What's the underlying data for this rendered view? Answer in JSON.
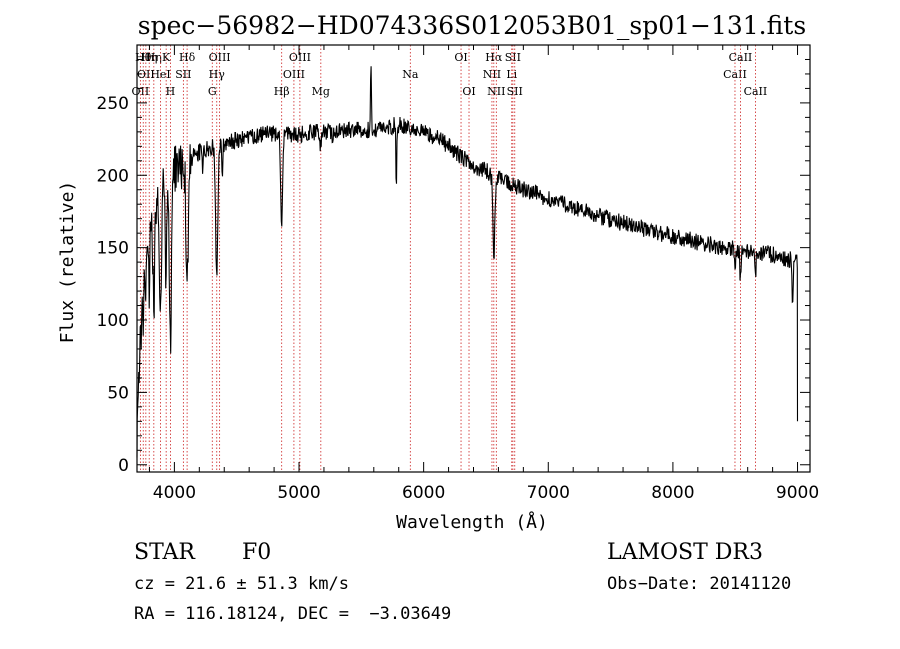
{
  "chart_data": {
    "type": "line",
    "title": "spec−56982−HD074336S012053B01_sp01−131.fits",
    "xlabel": "Wavelength (Å)",
    "ylabel": "Flux (relative)",
    "xlim": [
      3700,
      9100
    ],
    "ylim": [
      -5,
      290
    ],
    "xticks": [
      4000,
      5000,
      6000,
      7000,
      8000,
      9000
    ],
    "xtick_labels": [
      "4000",
      "5000",
      "6000",
      "7000",
      "8000",
      "9000"
    ],
    "yticks": [
      0,
      50,
      100,
      150,
      200,
      250
    ],
    "ytick_labels": [
      "0",
      "50",
      "100",
      "150",
      "200",
      "250"
    ],
    "continuum": [
      [
        3700,
        150
      ],
      [
        3750,
        160
      ],
      [
        3800,
        175
      ],
      [
        3850,
        185
      ],
      [
        3900,
        192
      ],
      [
        3950,
        198
      ],
      [
        4000,
        203
      ],
      [
        4100,
        211
      ],
      [
        4200,
        216
      ],
      [
        4300,
        219
      ],
      [
        4400,
        222
      ],
      [
        4500,
        224
      ],
      [
        4600,
        226
      ],
      [
        4700,
        228
      ],
      [
        4800,
        229
      ],
      [
        4900,
        229
      ],
      [
        5000,
        228
      ],
      [
        5100,
        229
      ],
      [
        5200,
        230
      ],
      [
        5300,
        231
      ],
      [
        5400,
        231
      ],
      [
        5500,
        231
      ],
      [
        5600,
        232
      ],
      [
        5700,
        233
      ],
      [
        5800,
        235
      ],
      [
        5900,
        234
      ],
      [
        6000,
        230
      ],
      [
        6100,
        226
      ],
      [
        6200,
        220
      ],
      [
        6300,
        213
      ],
      [
        6400,
        207
      ],
      [
        6500,
        203
      ],
      [
        6600,
        198
      ],
      [
        6700,
        194
      ],
      [
        6800,
        190
      ],
      [
        7000,
        184
      ],
      [
        7200,
        178
      ],
      [
        7400,
        172
      ],
      [
        7600,
        167
      ],
      [
        7800,
        162
      ],
      [
        8000,
        158
      ],
      [
        8200,
        154
      ],
      [
        8400,
        150
      ],
      [
        8600,
        148
      ],
      [
        8800,
        145
      ],
      [
        9000,
        140
      ]
    ],
    "absorption": [
      [
        3705,
        120,
        5
      ],
      [
        3720,
        90,
        6
      ],
      [
        3735,
        60,
        6
      ],
      [
        3750,
        50,
        6
      ],
      [
        3770,
        45,
        6
      ],
      [
        3798,
        60,
        6
      ],
      [
        3835,
        75,
        7
      ],
      [
        3889,
        90,
        8
      ],
      [
        3933,
        70,
        6
      ],
      [
        3968,
        120,
        8
      ],
      [
        4102,
        80,
        9
      ],
      [
        4227,
        20,
        4
      ],
      [
        4340,
        90,
        9
      ],
      [
        4384,
        20,
        4
      ],
      [
        4861,
        65,
        8
      ],
      [
        5175,
        10,
        6
      ],
      [
        5270,
        8,
        5
      ],
      [
        5780,
        50,
        3
      ],
      [
        5893,
        18,
        5
      ],
      [
        6563,
        55,
        8
      ],
      [
        8498,
        15,
        5
      ],
      [
        8542,
        22,
        5
      ],
      [
        8662,
        18,
        5
      ],
      [
        8960,
        25,
        5
      ]
    ],
    "emission": [
      [
        5577,
        50,
        3
      ],
      [
        5890,
        15,
        4
      ]
    ],
    "noise_amplitude": 6,
    "line_markers": [
      {
        "wavelength": 3727,
        "row": 2,
        "label": "OII"
      },
      {
        "wavelength": 3750,
        "row": 0,
        "label": "Hθ"
      },
      {
        "wavelength": 3771,
        "row": 1,
        "label": "OII"
      },
      {
        "wavelength": 3798,
        "row": 0,
        "label": "Hη"
      },
      {
        "wavelength": 3835,
        "row": 0,
        "label": "Hη"
      },
      {
        "wavelength": 3889,
        "row": 1,
        "label": "HeI"
      },
      {
        "wavelength": 3934,
        "row": 0,
        "label": "K"
      },
      {
        "wavelength": 3968,
        "row": 2,
        "label": "H"
      },
      {
        "wavelength": 4072,
        "row": 1,
        "label": "SII"
      },
      {
        "wavelength": 4102,
        "row": 0,
        "label": "Hδ"
      },
      {
        "wavelength": 4304,
        "row": 2,
        "label": "G"
      },
      {
        "wavelength": 4340,
        "row": 1,
        "label": "Hγ"
      },
      {
        "wavelength": 4363,
        "row": 0,
        "label": "OIII"
      },
      {
        "wavelength": 4861,
        "row": 2,
        "label": "Hβ"
      },
      {
        "wavelength": 4959,
        "row": 1,
        "label": "OIII"
      },
      {
        "wavelength": 5007,
        "row": 0,
        "label": "OIII"
      },
      {
        "wavelength": 5175,
        "row": 2,
        "label": "Mg"
      },
      {
        "wavelength": 5893,
        "row": 1,
        "label": "Na"
      },
      {
        "wavelength": 6300,
        "row": 0,
        "label": "OI"
      },
      {
        "wavelength": 6364,
        "row": 2,
        "label": "OI"
      },
      {
        "wavelength": 6548,
        "row": 1,
        "label": "NII"
      },
      {
        "wavelength": 6563,
        "row": 0,
        "label": "Hα"
      },
      {
        "wavelength": 6583,
        "row": 2,
        "label": "NII"
      },
      {
        "wavelength": 6707,
        "row": 1,
        "label": "Li"
      },
      {
        "wavelength": 6716,
        "row": 0,
        "label": "SII"
      },
      {
        "wavelength": 6731,
        "row": 2,
        "label": "SII"
      },
      {
        "wavelength": 8498,
        "row": 1,
        "label": "CaII"
      },
      {
        "wavelength": 8542,
        "row": 0,
        "label": "CaII"
      },
      {
        "wavelength": 8662,
        "row": 2,
        "label": "CaII"
      }
    ],
    "colors": {
      "spectrum": "#000000",
      "markers": "#cc2222",
      "axes": "#000000",
      "background": "#ffffff"
    }
  },
  "footer": {
    "object_class": "STAR",
    "subclass": "F0",
    "survey": "LAMOST DR3",
    "redshift": "cz = 21.6 ± 51.3 km/s",
    "obs_date": "Obs−Date: 20141120",
    "coords": "RA = 116.18124, DEC =  −3.03649"
  }
}
